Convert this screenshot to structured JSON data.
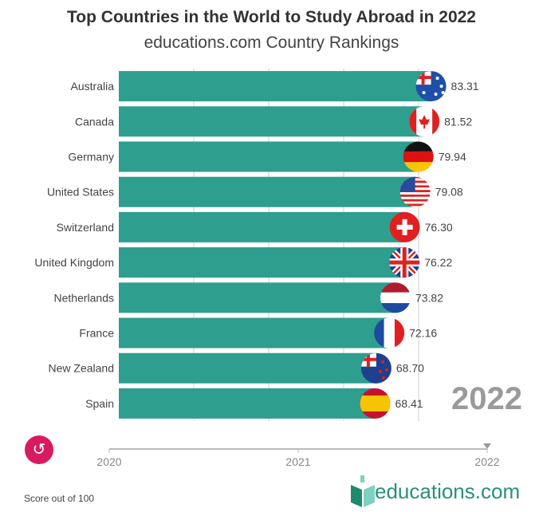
{
  "chart_data": {
    "type": "bar",
    "orientation": "horizontal",
    "title": "Top Countries in the World to Study Abroad in 2022",
    "subtitle": "educations.com Country Rankings",
    "categories": [
      "Australia",
      "Canada",
      "Germany",
      "United States",
      "Switzerland",
      "United Kingdom",
      "Netherlands",
      "France",
      "New Zealand",
      "Spain"
    ],
    "values": [
      83.31,
      81.52,
      79.94,
      79.08,
      76.3,
      76.22,
      73.82,
      72.16,
      68.7,
      68.41
    ],
    "value_labels": [
      "83.31",
      "81.52",
      "79.94",
      "79.08",
      "76.30",
      "76.22",
      "73.82",
      "72.16",
      "68.70",
      "68.41"
    ],
    "xlim": [
      0,
      100
    ],
    "grid": true,
    "gridlines": [
      20,
      40,
      60,
      80
    ],
    "bar_color": "#2e9e8e",
    "current_year": "2022",
    "timeline": {
      "ticks": [
        "2020",
        "2021",
        "2022"
      ],
      "selected": "2022"
    },
    "footnote": "Score out of 100"
  },
  "logo": {
    "text": "educations.com"
  },
  "controls": {
    "replay_icon": "replay-icon",
    "replay_color": "#d81b60"
  }
}
